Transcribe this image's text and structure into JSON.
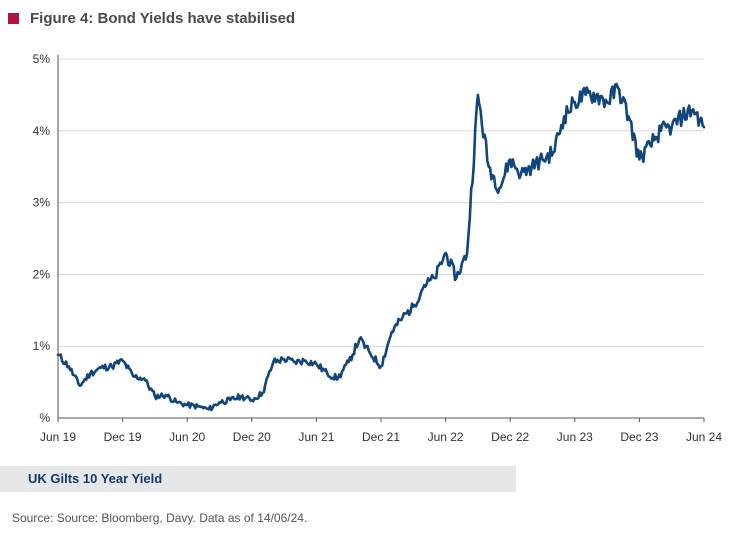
{
  "figure": {
    "title": "Figure 4: Bond Yields have stabilised",
    "marker_color": "#b5123e"
  },
  "caption": "UK Gilts 10 Year Yield",
  "source": "Source: Source: Bloomberg, Davy. Data as of 14/06/24.",
  "chart_data": {
    "type": "line",
    "title": "Figure 4: Bond Yields have stabilised",
    "xlabel": "",
    "ylabel": "",
    "ylim": [
      0,
      5
    ],
    "xlim": [
      "2019-06",
      "2024-06"
    ],
    "yticks": [
      {
        "value": 0,
        "label": "%"
      },
      {
        "value": 1,
        "label": "1%"
      },
      {
        "value": 2,
        "label": "2%"
      },
      {
        "value": 3,
        "label": "3%"
      },
      {
        "value": 4,
        "label": "4%"
      },
      {
        "value": 5,
        "label": "5%"
      }
    ],
    "xticks": [
      {
        "value": "2019-06",
        "label": "Jun 19"
      },
      {
        "value": "2019-12",
        "label": "Dec 19"
      },
      {
        "value": "2020-06",
        "label": "Jun 20"
      },
      {
        "value": "2020-12",
        "label": "Dec 20"
      },
      {
        "value": "2021-06",
        "label": "Jun 21"
      },
      {
        "value": "2021-12",
        "label": "Dec 21"
      },
      {
        "value": "2022-06",
        "label": "Jun 22"
      },
      {
        "value": "2022-12",
        "label": "Dec 22"
      },
      {
        "value": "2023-06",
        "label": "Jun 23"
      },
      {
        "value": "2023-12",
        "label": "Dec 23"
      },
      {
        "value": "2024-06",
        "label": "Jun 24"
      }
    ],
    "grid": "horizontal",
    "line_color": "#10467b",
    "series": [
      {
        "name": "UK Gilts 10 Year Yield",
        "x": [
          "2019-06",
          "2019-07",
          "2019-08",
          "2019-09",
          "2019-10",
          "2019-11",
          "2019-12",
          "2020-01",
          "2020-02",
          "2020-03",
          "2020-04",
          "2020-05",
          "2020-06",
          "2020-07",
          "2020-08",
          "2020-09",
          "2020-10",
          "2020-11",
          "2020-12",
          "2021-01",
          "2021-02",
          "2021-03",
          "2021-04",
          "2021-05",
          "2021-06",
          "2021-07",
          "2021-08",
          "2021-09",
          "2021-10",
          "2021-11",
          "2021-12",
          "2022-01",
          "2022-02",
          "2022-03",
          "2022-04",
          "2022-05",
          "2022-06",
          "2022-07",
          "2022-08",
          "2022-09",
          "2022-10",
          "2022-11",
          "2022-12",
          "2023-01",
          "2023-02",
          "2023-03",
          "2023-04",
          "2023-05",
          "2023-06",
          "2023-07",
          "2023-08",
          "2023-09",
          "2023-10",
          "2023-11",
          "2023-12",
          "2024-01",
          "2024-02",
          "2024-03",
          "2024-04",
          "2024-05",
          "2024-06"
        ],
        "values": [
          0.88,
          0.72,
          0.45,
          0.62,
          0.7,
          0.72,
          0.8,
          0.58,
          0.55,
          0.3,
          0.32,
          0.22,
          0.18,
          0.16,
          0.12,
          0.22,
          0.25,
          0.3,
          0.25,
          0.35,
          0.78,
          0.82,
          0.78,
          0.8,
          0.75,
          0.62,
          0.55,
          0.78,
          1.1,
          0.9,
          0.72,
          1.2,
          1.4,
          1.55,
          1.85,
          1.95,
          2.3,
          1.95,
          2.3,
          4.5,
          3.5,
          3.2,
          3.6,
          3.4,
          3.5,
          3.6,
          3.7,
          4.2,
          4.4,
          4.5,
          4.5,
          4.4,
          4.6,
          4.2,
          3.6,
          3.8,
          4.0,
          4.05,
          4.2,
          4.3,
          4.05
        ]
      }
    ]
  }
}
